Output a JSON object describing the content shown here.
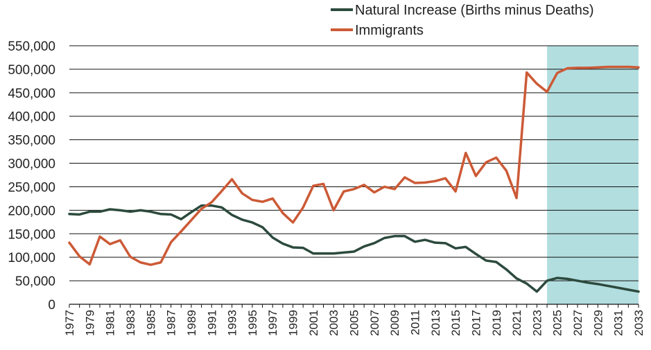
{
  "chart_data": {
    "type": "line",
    "title": "",
    "xlabel": "",
    "ylabel": "",
    "x": [
      1977,
      1978,
      1979,
      1980,
      1981,
      1982,
      1983,
      1984,
      1985,
      1986,
      1987,
      1988,
      1989,
      1990,
      1991,
      1992,
      1993,
      1994,
      1995,
      1996,
      1997,
      1998,
      1999,
      2000,
      2001,
      2002,
      2003,
      2004,
      2005,
      2006,
      2007,
      2008,
      2009,
      2010,
      2011,
      2012,
      2013,
      2014,
      2015,
      2016,
      2017,
      2018,
      2019,
      2020,
      2021,
      2022,
      2023,
      2024,
      2025,
      2026,
      2027,
      2028,
      2029,
      2030,
      2031,
      2032,
      2033
    ],
    "xlim": [
      1977,
      2033
    ],
    "ylim": [
      0,
      550000
    ],
    "yticks": [
      0,
      50000,
      100000,
      150000,
      200000,
      250000,
      300000,
      350000,
      400000,
      450000,
      500000,
      550000
    ],
    "ytick_labels": [
      "0",
      "50,000",
      "100,000",
      "150,000",
      "200,000",
      "250,000",
      "300,000",
      "350,000",
      "400,000",
      "450,000",
      "500,000",
      "550,000"
    ],
    "xtick_labels": [
      "1977",
      "1979",
      "1981",
      "1983",
      "1985",
      "1987",
      "1989",
      "1991",
      "1993",
      "1995",
      "1997",
      "1999",
      "2001",
      "2003",
      "2005",
      "2007",
      "2009",
      "2011",
      "2013",
      "2015",
      "2017",
      "2019",
      "2021",
      "2023",
      "2025",
      "2027",
      "2029",
      "2031",
      "2033"
    ],
    "grid": "horizontal",
    "legend_position": "top-center",
    "projection_band": {
      "x_start": 2024,
      "x_end": 2033,
      "color": "#b3dee0"
    },
    "series": [
      {
        "name": "Natural Increase (Births minus Deaths)",
        "color": "#2c4a3d",
        "values": [
          192000,
          191000,
          197000,
          197000,
          202000,
          200000,
          197000,
          200000,
          197000,
          192000,
          191000,
          181000,
          196000,
          210000,
          210000,
          206000,
          190000,
          180000,
          174000,
          164000,
          142000,
          129000,
          121000,
          120000,
          108000,
          108000,
          108000,
          110000,
          112000,
          123000,
          130000,
          141000,
          145000,
          145000,
          133000,
          137000,
          131000,
          130000,
          119000,
          122000,
          107000,
          93000,
          90000,
          74000,
          55000,
          44000,
          27000,
          50000,
          56000,
          54000,
          50000,
          46000,
          43000,
          39000,
          35000,
          31000,
          27000
        ]
      },
      {
        "name": "Immigrants",
        "color": "#cc5a36",
        "values": [
          131000,
          102000,
          85000,
          144000,
          128000,
          136000,
          101000,
          89000,
          84000,
          89000,
          132000,
          155000,
          179000,
          203000,
          217000,
          241000,
          266000,
          236000,
          222000,
          218000,
          225000,
          194000,
          174000,
          206000,
          252000,
          256000,
          200000,
          240000,
          245000,
          254000,
          238000,
          250000,
          245000,
          270000,
          258000,
          259000,
          262000,
          268000,
          240000,
          322000,
          273000,
          302000,
          312000,
          284000,
          226000,
          493000,
          469000,
          452000,
          492000,
          502000,
          503000,
          503000,
          504000,
          505000,
          505000,
          505000,
          504000
        ]
      }
    ]
  }
}
